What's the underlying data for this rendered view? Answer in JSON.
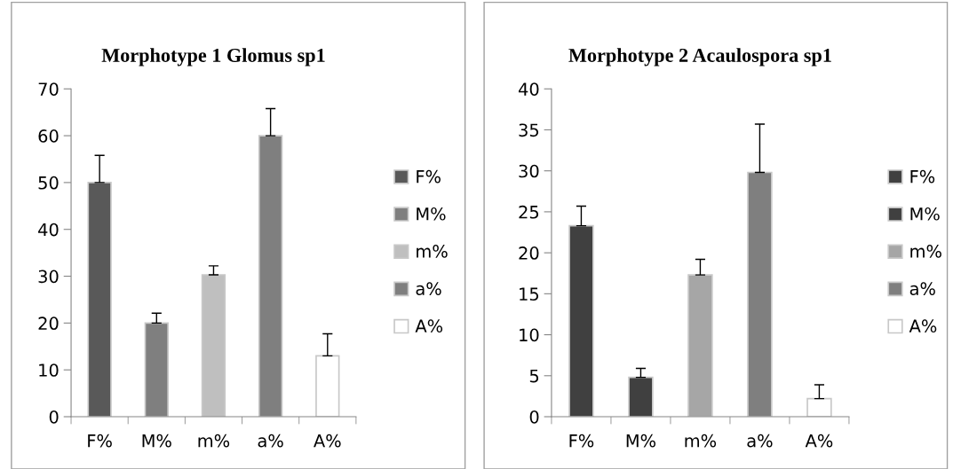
{
  "chart_data": [
    {
      "type": "bar",
      "title": "Morphotype 1 Glomus sp1",
      "categories": [
        "F%",
        "M%",
        "m%",
        "a%",
        "A%"
      ],
      "ylim": [
        0,
        70
      ],
      "yticks": [
        0,
        10,
        20,
        30,
        40,
        50,
        60,
        70
      ],
      "legend": "right",
      "grid": false,
      "series": [
        {
          "name": "F%",
          "color": "#595959",
          "values": [
            50,
            null,
            null,
            null,
            null
          ],
          "errors": [
            [
              50,
              55.8
            ],
            null,
            null,
            null,
            null
          ]
        },
        {
          "name": "M%",
          "color": "#7f7f7f",
          "values": [
            null,
            20,
            null,
            null,
            null
          ],
          "errors": [
            null,
            [
              20,
              22.1
            ],
            null,
            null,
            null
          ]
        },
        {
          "name": "m%",
          "color": "#bfbfbf",
          "values": [
            null,
            null,
            30.3,
            null,
            null
          ],
          "errors": [
            null,
            null,
            [
              30.3,
              32.2
            ],
            null,
            null
          ]
        },
        {
          "name": "a%",
          "color": "#7f7f7f",
          "values": [
            null,
            null,
            null,
            60,
            null
          ],
          "errors": [
            null,
            null,
            null,
            [
              60,
              65.8
            ],
            null
          ]
        },
        {
          "name": "A%",
          "color": "#ffffff",
          "values": [
            null,
            null,
            null,
            null,
            13
          ],
          "errors": [
            null,
            null,
            null,
            null,
            [
              13,
              17.7
            ]
          ]
        }
      ]
    },
    {
      "type": "bar",
      "title": "Morphotype 2 Acaulospora sp1",
      "categories": [
        "F%",
        "M%",
        "m%",
        "a%",
        "A%"
      ],
      "ylim": [
        0,
        40
      ],
      "yticks": [
        0,
        5,
        10,
        15,
        20,
        25,
        30,
        35,
        40
      ],
      "legend": "right",
      "grid": false,
      "series": [
        {
          "name": "F%",
          "color": "#404040",
          "values": [
            23.3,
            null,
            null,
            null,
            null
          ],
          "errors": [
            [
              23.3,
              25.7
            ],
            null,
            null,
            null,
            null
          ]
        },
        {
          "name": "M%",
          "color": "#404040",
          "values": [
            null,
            4.8,
            null,
            null,
            null
          ],
          "errors": [
            null,
            [
              4.8,
              5.9
            ],
            null,
            null,
            null
          ]
        },
        {
          "name": "m%",
          "color": "#a6a6a6",
          "values": [
            null,
            null,
            17.3,
            null,
            null
          ],
          "errors": [
            null,
            null,
            [
              17.3,
              19.2
            ],
            null,
            null
          ]
        },
        {
          "name": "a%",
          "color": "#7f7f7f",
          "values": [
            null,
            null,
            null,
            29.8,
            null
          ],
          "errors": [
            null,
            null,
            null,
            [
              29.8,
              35.7
            ],
            null
          ]
        },
        {
          "name": "A%",
          "color": "#ffffff",
          "values": [
            null,
            null,
            null,
            null,
            2.2
          ],
          "errors": [
            null,
            null,
            null,
            null,
            [
              2.2,
              3.9
            ]
          ]
        }
      ]
    }
  ]
}
